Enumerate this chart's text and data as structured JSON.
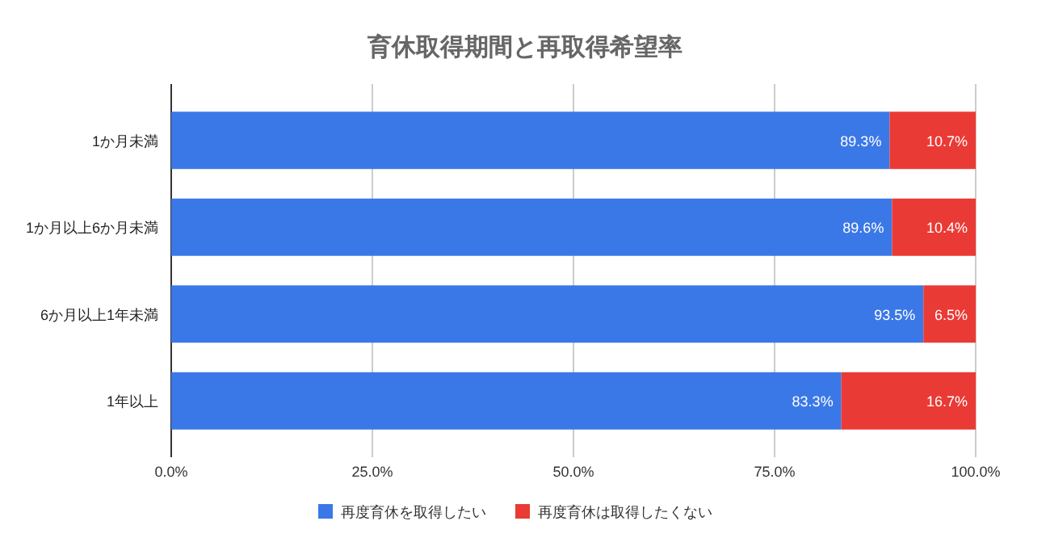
{
  "chart_data": {
    "type": "bar",
    "orientation": "horizontal",
    "stacked": true,
    "title": "育休取得期間と再取得希望率",
    "categories": [
      "1か月未満",
      "1か月以上6か月未満",
      "6か月以上1年未満",
      "1年以上"
    ],
    "series": [
      {
        "name": "再度育休を取得したい",
        "color": "#3b78e7",
        "values": [
          89.3,
          89.6,
          93.5,
          83.3
        ],
        "value_labels": [
          "89.3%",
          "89.6%",
          "93.5%",
          "83.3%"
        ]
      },
      {
        "name": "再度育休は取得したくない",
        "color": "#ea3a35",
        "values": [
          10.7,
          10.4,
          6.5,
          16.7
        ],
        "value_labels": [
          "10.7%",
          "10.4%",
          "6.5%",
          "16.7%"
        ]
      }
    ],
    "xlim": [
      0,
      100
    ],
    "xticks": [
      {
        "value": 0,
        "label": "0.0%"
      },
      {
        "value": 25,
        "label": "25.0%"
      },
      {
        "value": 50,
        "label": "50.0%"
      },
      {
        "value": 75,
        "label": "75.0%"
      },
      {
        "value": 100,
        "label": "100.0%"
      }
    ],
    "grid": "x",
    "legend": "bottom"
  }
}
